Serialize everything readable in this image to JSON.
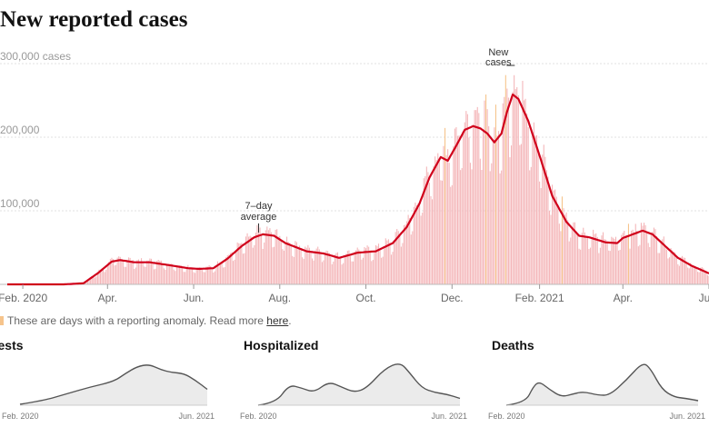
{
  "title": "New reported cases",
  "note": {
    "text": "These are days with a reporting anomaly. Read more ",
    "link_text": "here",
    "end": "."
  },
  "colors": {
    "bars": "#f4b6b9",
    "anomaly_bars": "#f6c48c",
    "line": "#d0021b",
    "small_fill": "#ebebeb",
    "small_line": "#555555"
  },
  "chart_data": [
    {
      "type": "bar",
      "title": "New reported cases",
      "y_unit_label": "cases",
      "ylim": [
        0,
        300000
      ],
      "y_ticks": [
        {
          "value": 300000,
          "label": "300,000"
        },
        {
          "value": 200000,
          "label": "200,000"
        },
        {
          "value": 100000,
          "label": "100,000"
        }
      ],
      "x_ticks": [
        {
          "date": "2020-02-01",
          "label": "Feb. 2020"
        },
        {
          "date": "2020-04-01",
          "label": "Apr."
        },
        {
          "date": "2020-06-01",
          "label": "Jun."
        },
        {
          "date": "2020-08-01",
          "label": "Aug."
        },
        {
          "date": "2020-10-01",
          "label": "Oct."
        },
        {
          "date": "2020-12-01",
          "label": "Dec."
        },
        {
          "date": "2021-02-01",
          "label": "Feb. 2021"
        },
        {
          "date": "2021-04-01",
          "label": "Apr."
        },
        {
          "date": "2021-06-01",
          "label": "Jun."
        }
      ],
      "date_range": [
        "2020-01-21",
        "2021-06-01"
      ],
      "grid": true,
      "annotations": [
        {
          "text": [
            "7–day",
            "average"
          ],
          "date": "2020-07-17",
          "value": 68000,
          "target": "line"
        },
        {
          "text": [
            "New",
            "cases"
          ],
          "date": "2021-01-08",
          "value": 300000,
          "target": "bars"
        }
      ],
      "series": [
        {
          "name": "7–day average",
          "type": "line",
          "points": [
            [
              "2020-01-21",
              0
            ],
            [
              "2020-03-01",
              0
            ],
            [
              "2020-03-15",
              1500
            ],
            [
              "2020-03-25",
              15000
            ],
            [
              "2020-04-04",
              31000
            ],
            [
              "2020-04-10",
              33000
            ],
            [
              "2020-04-20",
              30000
            ],
            [
              "2020-05-01",
              30000
            ],
            [
              "2020-05-15",
              26000
            ],
            [
              "2020-05-28",
              22000
            ],
            [
              "2020-06-05",
              21000
            ],
            [
              "2020-06-15",
              22000
            ],
            [
              "2020-06-25",
              35000
            ],
            [
              "2020-07-05",
              52000
            ],
            [
              "2020-07-14",
              64000
            ],
            [
              "2020-07-20",
              68000
            ],
            [
              "2020-07-28",
              66000
            ],
            [
              "2020-08-05",
              56000
            ],
            [
              "2020-08-20",
              45000
            ],
            [
              "2020-09-01",
              42000
            ],
            [
              "2020-09-12",
              36000
            ],
            [
              "2020-09-25",
              43000
            ],
            [
              "2020-10-08",
              45000
            ],
            [
              "2020-10-20",
              56000
            ],
            [
              "2020-10-30",
              78000
            ],
            [
              "2020-11-08",
              110000
            ],
            [
              "2020-11-15",
              145000
            ],
            [
              "2020-11-23",
              173000
            ],
            [
              "2020-11-28",
              168000
            ],
            [
              "2020-12-03",
              185000
            ],
            [
              "2020-12-10",
              210000
            ],
            [
              "2020-12-16",
              215000
            ],
            [
              "2020-12-21",
              212000
            ],
            [
              "2020-12-26",
              205000
            ],
            [
              "2020-12-31",
              193000
            ],
            [
              "2021-01-05",
              205000
            ],
            [
              "2021-01-09",
              235000
            ],
            [
              "2021-01-13",
              258000
            ],
            [
              "2021-01-17",
              252000
            ],
            [
              "2021-01-24",
              222000
            ],
            [
              "2021-02-01",
              175000
            ],
            [
              "2021-02-10",
              120000
            ],
            [
              "2021-02-20",
              85000
            ],
            [
              "2021-03-01",
              66000
            ],
            [
              "2021-03-08",
              64000
            ],
            [
              "2021-03-20",
              57000
            ],
            [
              "2021-03-28",
              56000
            ],
            [
              "2021-04-01",
              63000
            ],
            [
              "2021-04-08",
              68000
            ],
            [
              "2021-04-15",
              73000
            ],
            [
              "2021-04-22",
              68000
            ],
            [
              "2021-05-01",
              52000
            ],
            [
              "2021-05-10",
              36000
            ],
            [
              "2021-05-20",
              25000
            ],
            [
              "2021-06-01",
              15000
            ]
          ]
        },
        {
          "name": "New cases",
          "type": "bar",
          "note": "daily bars follow the 7-day average with weekly noise; anomaly days highlighted",
          "anomaly_dates": [
            "2020-11-26",
            "2020-12-25",
            "2021-01-01",
            "2021-01-08",
            "2021-02-17",
            "2021-04-05"
          ]
        }
      ]
    },
    {
      "type": "area",
      "title": "Tests",
      "x_ticks": [
        {
          "date": "2020-02-01",
          "label": "Feb. 2020"
        },
        {
          "date": "2021-06-01",
          "label": "Jun. 2021"
        }
      ],
      "date_range": [
        "2020-02-01",
        "2021-06-01"
      ],
      "ylim": [
        0,
        1
      ],
      "series": [
        {
          "points": [
            [
              "2020-02-01",
              0.02
            ],
            [
              "2020-04-01",
              0.1
            ],
            [
              "2020-06-01",
              0.25
            ],
            [
              "2020-08-01",
              0.4
            ],
            [
              "2020-10-01",
              0.52
            ],
            [
              "2020-11-01",
              0.7
            ],
            [
              "2020-12-01",
              0.85
            ],
            [
              "2021-01-01",
              0.9
            ],
            [
              "2021-02-01",
              0.78
            ],
            [
              "2021-03-01",
              0.72
            ],
            [
              "2021-04-01",
              0.7
            ],
            [
              "2021-05-01",
              0.55
            ],
            [
              "2021-06-01",
              0.35
            ]
          ]
        }
      ]
    },
    {
      "type": "area",
      "title": "Hospitalized",
      "x_ticks": [
        {
          "date": "2020-02-01",
          "label": "Feb. 2020"
        },
        {
          "date": "2021-06-01",
          "label": "Jun. 2021"
        }
      ],
      "date_range": [
        "2020-02-01",
        "2021-06-01"
      ],
      "ylim": [
        0,
        1
      ],
      "series": [
        {
          "points": [
            [
              "2020-02-01",
              0.0
            ],
            [
              "2020-03-15",
              0.05
            ],
            [
              "2020-04-15",
              0.45
            ],
            [
              "2020-05-15",
              0.38
            ],
            [
              "2020-06-15",
              0.28
            ],
            [
              "2020-07-20",
              0.52
            ],
            [
              "2020-08-20",
              0.4
            ],
            [
              "2020-09-20",
              0.28
            ],
            [
              "2020-10-20",
              0.38
            ],
            [
              "2020-12-01",
              0.8
            ],
            [
              "2021-01-08",
              0.95
            ],
            [
              "2021-02-01",
              0.7
            ],
            [
              "2021-03-01",
              0.38
            ],
            [
              "2021-04-01",
              0.28
            ],
            [
              "2021-05-01",
              0.24
            ],
            [
              "2021-06-01",
              0.15
            ]
          ]
        }
      ]
    },
    {
      "type": "area",
      "title": "Deaths",
      "x_ticks": [
        {
          "date": "2020-02-01",
          "label": "Feb. 2020"
        },
        {
          "date": "2021-06-01",
          "label": "Jun. 2021"
        }
      ],
      "date_range": [
        "2020-02-01",
        "2021-06-01"
      ],
      "ylim": [
        0,
        1
      ],
      "series": [
        {
          "points": [
            [
              "2020-02-01",
              0.0
            ],
            [
              "2020-03-20",
              0.05
            ],
            [
              "2020-04-10",
              0.42
            ],
            [
              "2020-04-25",
              0.52
            ],
            [
              "2020-05-20",
              0.35
            ],
            [
              "2020-06-20",
              0.18
            ],
            [
              "2020-07-20",
              0.25
            ],
            [
              "2020-08-15",
              0.3
            ],
            [
              "2020-09-20",
              0.22
            ],
            [
              "2020-10-20",
              0.22
            ],
            [
              "2020-12-01",
              0.55
            ],
            [
              "2021-01-12",
              0.95
            ],
            [
              "2021-02-01",
              0.8
            ],
            [
              "2021-03-01",
              0.35
            ],
            [
              "2021-04-01",
              0.18
            ],
            [
              "2021-05-01",
              0.15
            ],
            [
              "2021-06-01",
              0.1
            ]
          ]
        }
      ]
    }
  ]
}
